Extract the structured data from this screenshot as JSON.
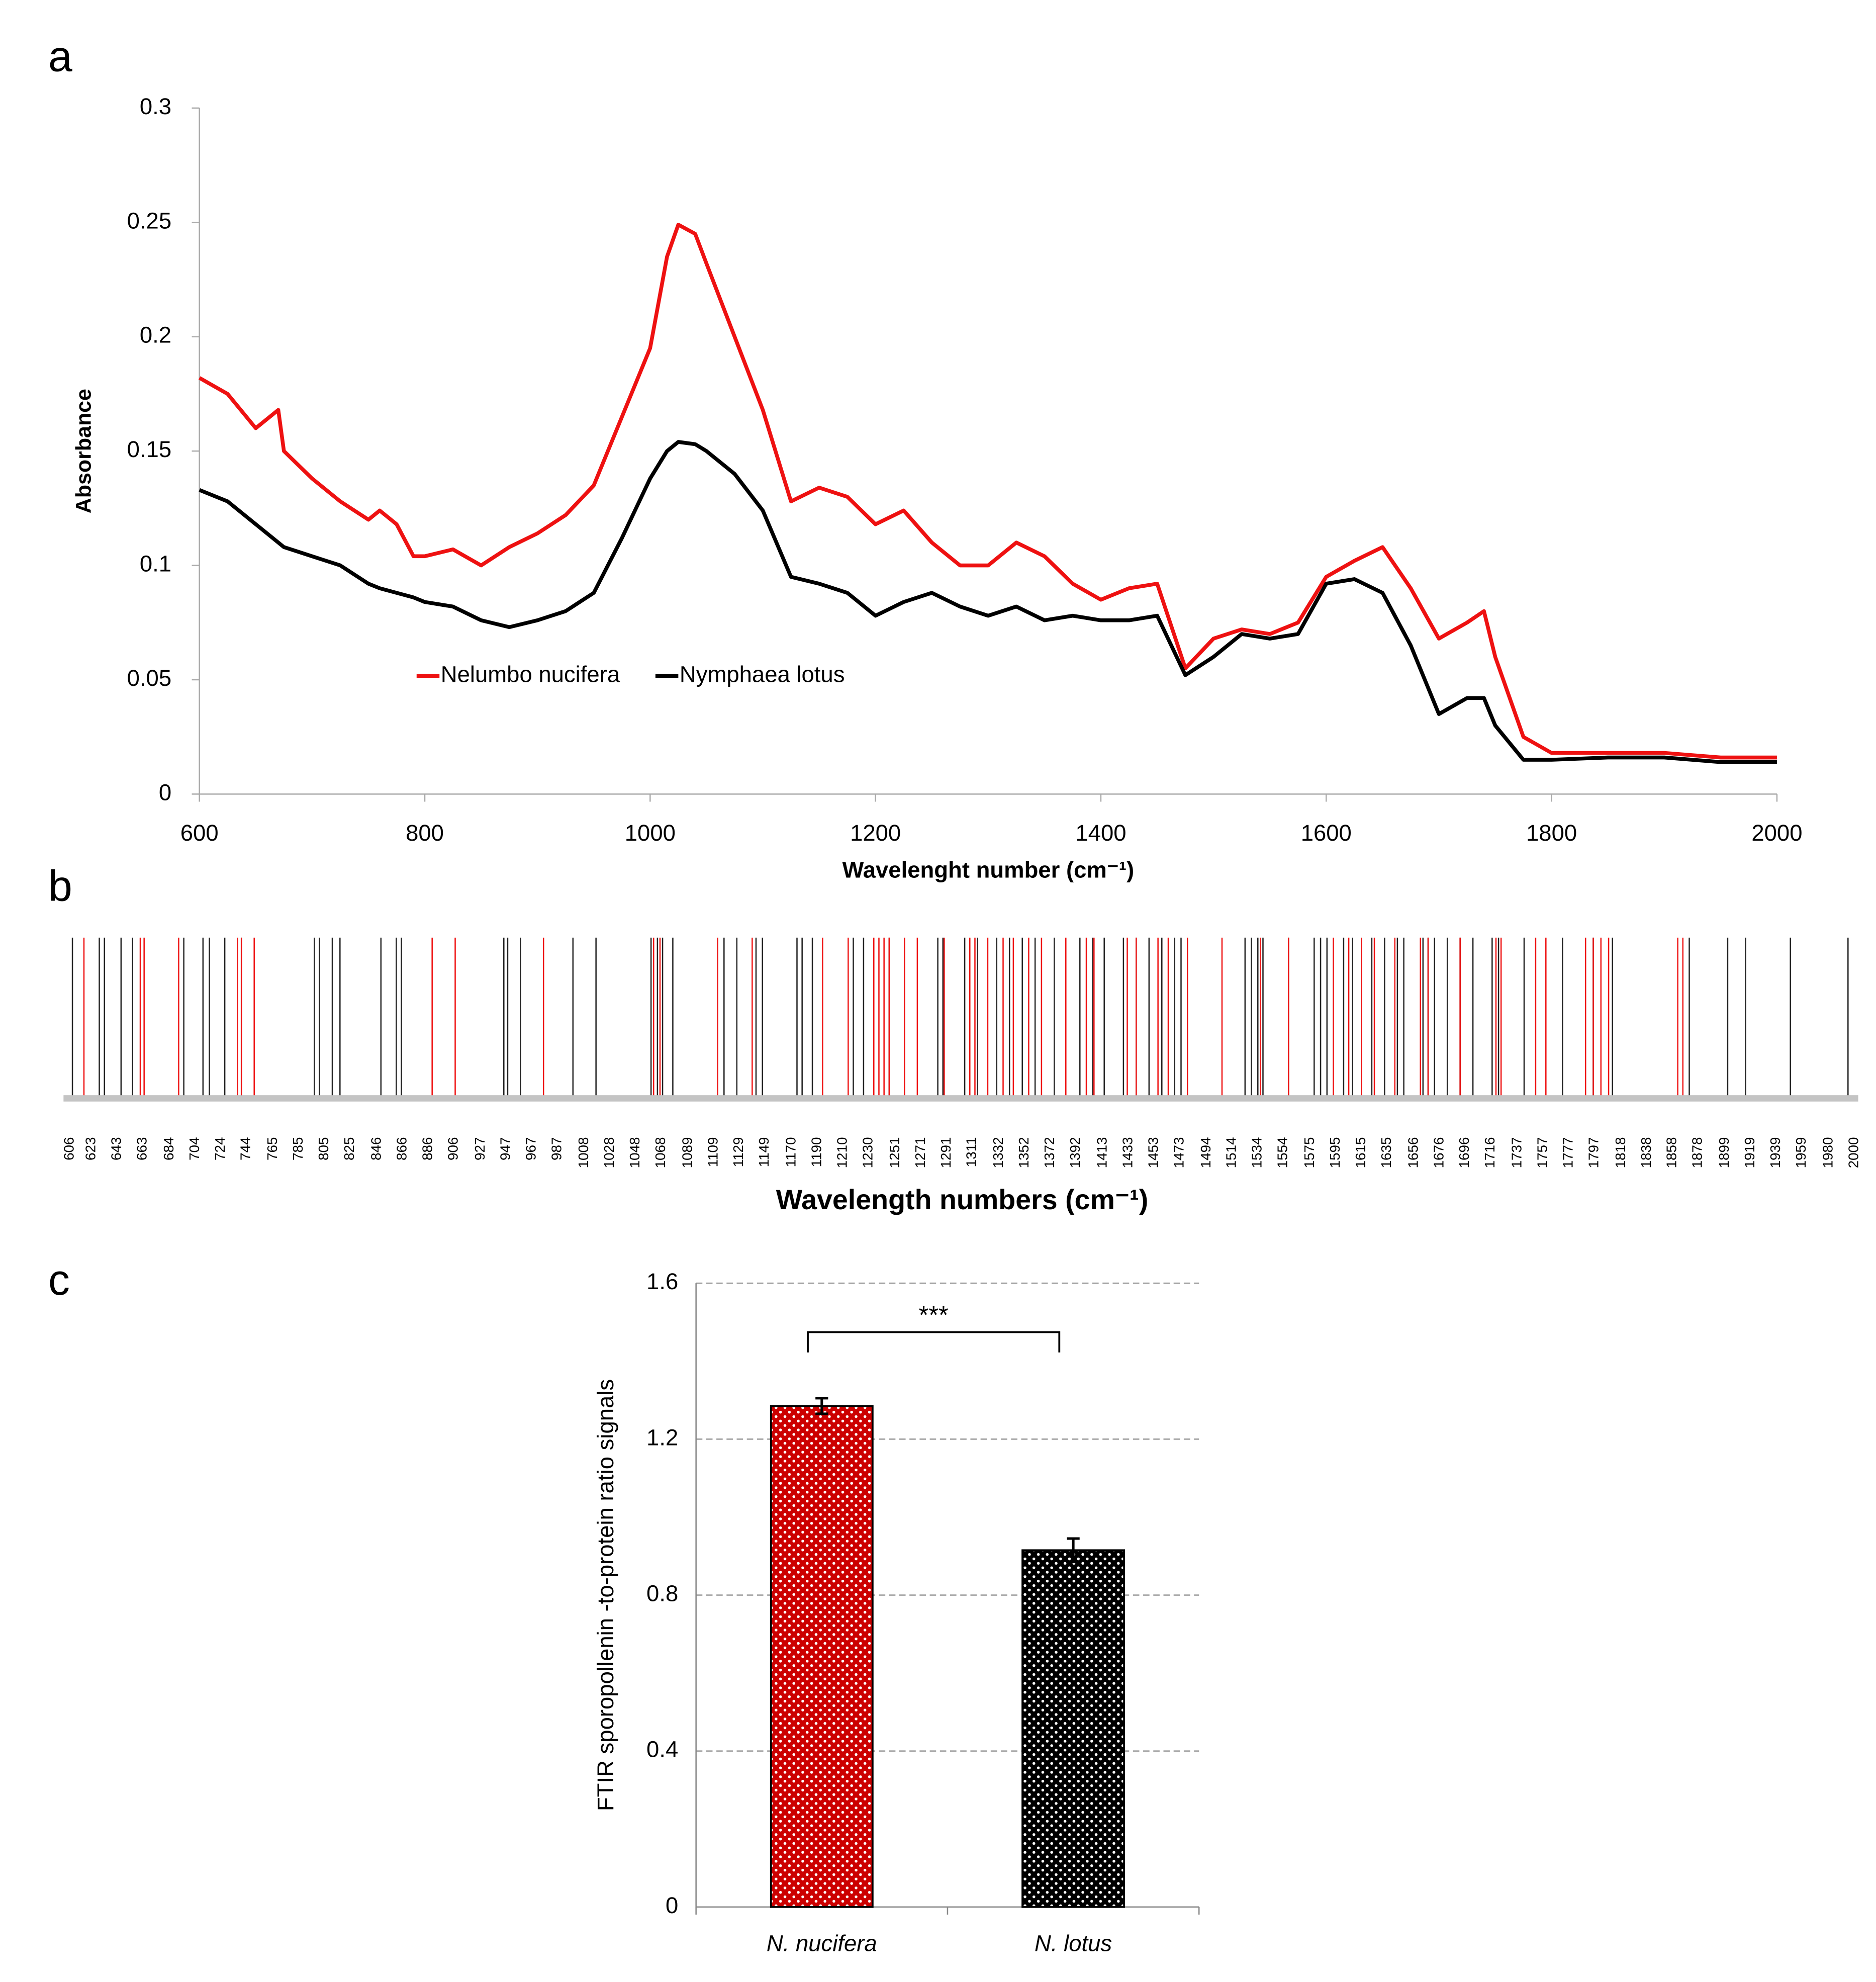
{
  "chart_data": [
    {
      "type": "line",
      "panel_label": "a",
      "x_label": "Wavelenght number (cm⁻¹)",
      "y_label": "Absorbance",
      "x": [
        600,
        625,
        650,
        670,
        675,
        700,
        725,
        750,
        760,
        775,
        790,
        800,
        825,
        850,
        875,
        900,
        925,
        950,
        975,
        1000,
        1015,
        1025,
        1040,
        1050,
        1075,
        1100,
        1125,
        1150,
        1175,
        1200,
        1225,
        1250,
        1275,
        1300,
        1325,
        1350,
        1375,
        1400,
        1425,
        1450,
        1475,
        1500,
        1525,
        1550,
        1575,
        1600,
        1625,
        1650,
        1675,
        1700,
        1725,
        1740,
        1750,
        1775,
        1800,
        1850,
        1900,
        1950,
        2000
      ],
      "series": [
        {
          "name": "Nelumbo nucifera",
          "color": "#ee1111",
          "values": [
            0.182,
            0.175,
            0.16,
            0.168,
            0.15,
            0.138,
            0.128,
            0.12,
            0.124,
            0.118,
            0.104,
            0.104,
            0.107,
            0.1,
            0.108,
            0.114,
            0.122,
            0.135,
            0.165,
            0.195,
            0.235,
            0.249,
            0.245,
            0.232,
            0.2,
            0.168,
            0.128,
            0.134,
            0.13,
            0.118,
            0.124,
            0.11,
            0.1,
            0.1,
            0.11,
            0.104,
            0.092,
            0.085,
            0.09,
            0.092,
            0.055,
            0.068,
            0.072,
            0.07,
            0.075,
            0.095,
            0.102,
            0.108,
            0.09,
            0.068,
            0.075,
            0.08,
            0.06,
            0.025,
            0.018,
            0.018,
            0.018,
            0.016,
            0.016
          ]
        },
        {
          "name": "Nymphaea lotus",
          "color": "#000000",
          "values": [
            0.133,
            0.128,
            0.118,
            0.11,
            0.108,
            0.104,
            0.1,
            0.092,
            0.09,
            0.088,
            0.086,
            0.084,
            0.082,
            0.076,
            0.073,
            0.076,
            0.08,
            0.088,
            0.112,
            0.138,
            0.15,
            0.154,
            0.153,
            0.15,
            0.14,
            0.124,
            0.095,
            0.092,
            0.088,
            0.078,
            0.084,
            0.088,
            0.082,
            0.078,
            0.082,
            0.076,
            0.078,
            0.076,
            0.076,
            0.078,
            0.052,
            0.06,
            0.07,
            0.068,
            0.07,
            0.092,
            0.094,
            0.088,
            0.065,
            0.035,
            0.042,
            0.042,
            0.03,
            0.015,
            0.015,
            0.016,
            0.016,
            0.014,
            0.014
          ]
        }
      ],
      "xlim": [
        600,
        2000
      ],
      "xticks": [
        600,
        800,
        1000,
        1200,
        1400,
        1600,
        1800,
        2000
      ],
      "ylim": [
        0,
        0.3
      ],
      "yticks": [
        0,
        0.05,
        0.1,
        0.15,
        0.2,
        0.25,
        0.3
      ],
      "legend": "lower-center"
    },
    {
      "type": "rug",
      "panel_label": "b",
      "x_label": "Wavelength numbers (cm⁻¹)",
      "xlim": [
        606,
        2000
      ],
      "xticks": [
        606,
        623,
        643,
        663,
        684,
        704,
        724,
        744,
        765,
        785,
        805,
        825,
        846,
        866,
        886,
        906,
        927,
        947,
        967,
        987,
        1008,
        1028,
        1048,
        1068,
        1089,
        1109,
        1129,
        1149,
        1170,
        1190,
        1210,
        1230,
        1251,
        1271,
        1291,
        1311,
        1332,
        1352,
        1372,
        1392,
        1413,
        1433,
        1453,
        1473,
        1494,
        1514,
        1534,
        1554,
        1575,
        1595,
        1615,
        1635,
        1656,
        1676,
        1696,
        1716,
        1737,
        1757,
        1777,
        1797,
        1818,
        1838,
        1858,
        1878,
        1899,
        1919,
        1939,
        1959,
        1980,
        2000
      ],
      "series": [
        {
          "color": "#222222",
          "x": [
            608,
            629,
            633,
            646,
            655,
            695,
            710,
            715,
            727,
            740,
            797,
            801,
            811,
            817,
            849,
            861,
            865,
            945,
            948,
            958,
            999,
            1017,
            1060,
            1065,
            1069,
            1077,
            1117,
            1127,
            1142,
            1147,
            1174,
            1178,
            1186,
            1218,
            1226,
            1246,
            1284,
            1288,
            1305,
            1315,
            1330,
            1340,
            1350,
            1360,
            1375,
            1395,
            1405,
            1414,
            1429,
            1439,
            1449,
            1459,
            1469,
            1474,
            1524,
            1529,
            1534,
            1538,
            1558,
            1578,
            1583,
            1588,
            1601,
            1608,
            1623,
            1633,
            1643,
            1648,
            1663,
            1667,
            1672,
            1682,
            1692,
            1702,
            1717,
            1722,
            1742,
            1772,
            1796,
            1811,
            1871,
            1901,
            1915,
            1950,
            1995
          ]
        },
        {
          "color": "#ee1111",
          "x": [
            617,
            661,
            664,
            691,
            737,
            740,
            750,
            889,
            907,
            976,
            1062,
            1067,
            1112,
            1139,
            1194,
            1214,
            1234,
            1238,
            1242,
            1246,
            1258,
            1268,
            1289,
            1309,
            1313,
            1323,
            1335,
            1343,
            1355,
            1365,
            1384,
            1400,
            1406,
            1432,
            1439,
            1456,
            1464,
            1479,
            1506,
            1536,
            1558,
            1593,
            1605,
            1615,
            1625,
            1641,
            1661,
            1667,
            1692,
            1720,
            1724,
            1751,
            1759,
            1790,
            1796,
            1802,
            1808,
            1862,
            1866
          ]
        }
      ]
    },
    {
      "type": "bar",
      "panel_label": "c",
      "y_label": "FTIR sporopollenin -to-protein ratio signals",
      "categories": [
        "N. nucifera",
        "N. lotus"
      ],
      "values": [
        1.285,
        0.915
      ],
      "errors": [
        0.02,
        0.03
      ],
      "colors": [
        "#cc0000",
        "#000000"
      ],
      "ylim": [
        0,
        1.6
      ],
      "yticks": [
        0,
        0.4,
        0.8,
        1.2,
        1.6
      ],
      "grid": true,
      "annotation": "***"
    }
  ]
}
